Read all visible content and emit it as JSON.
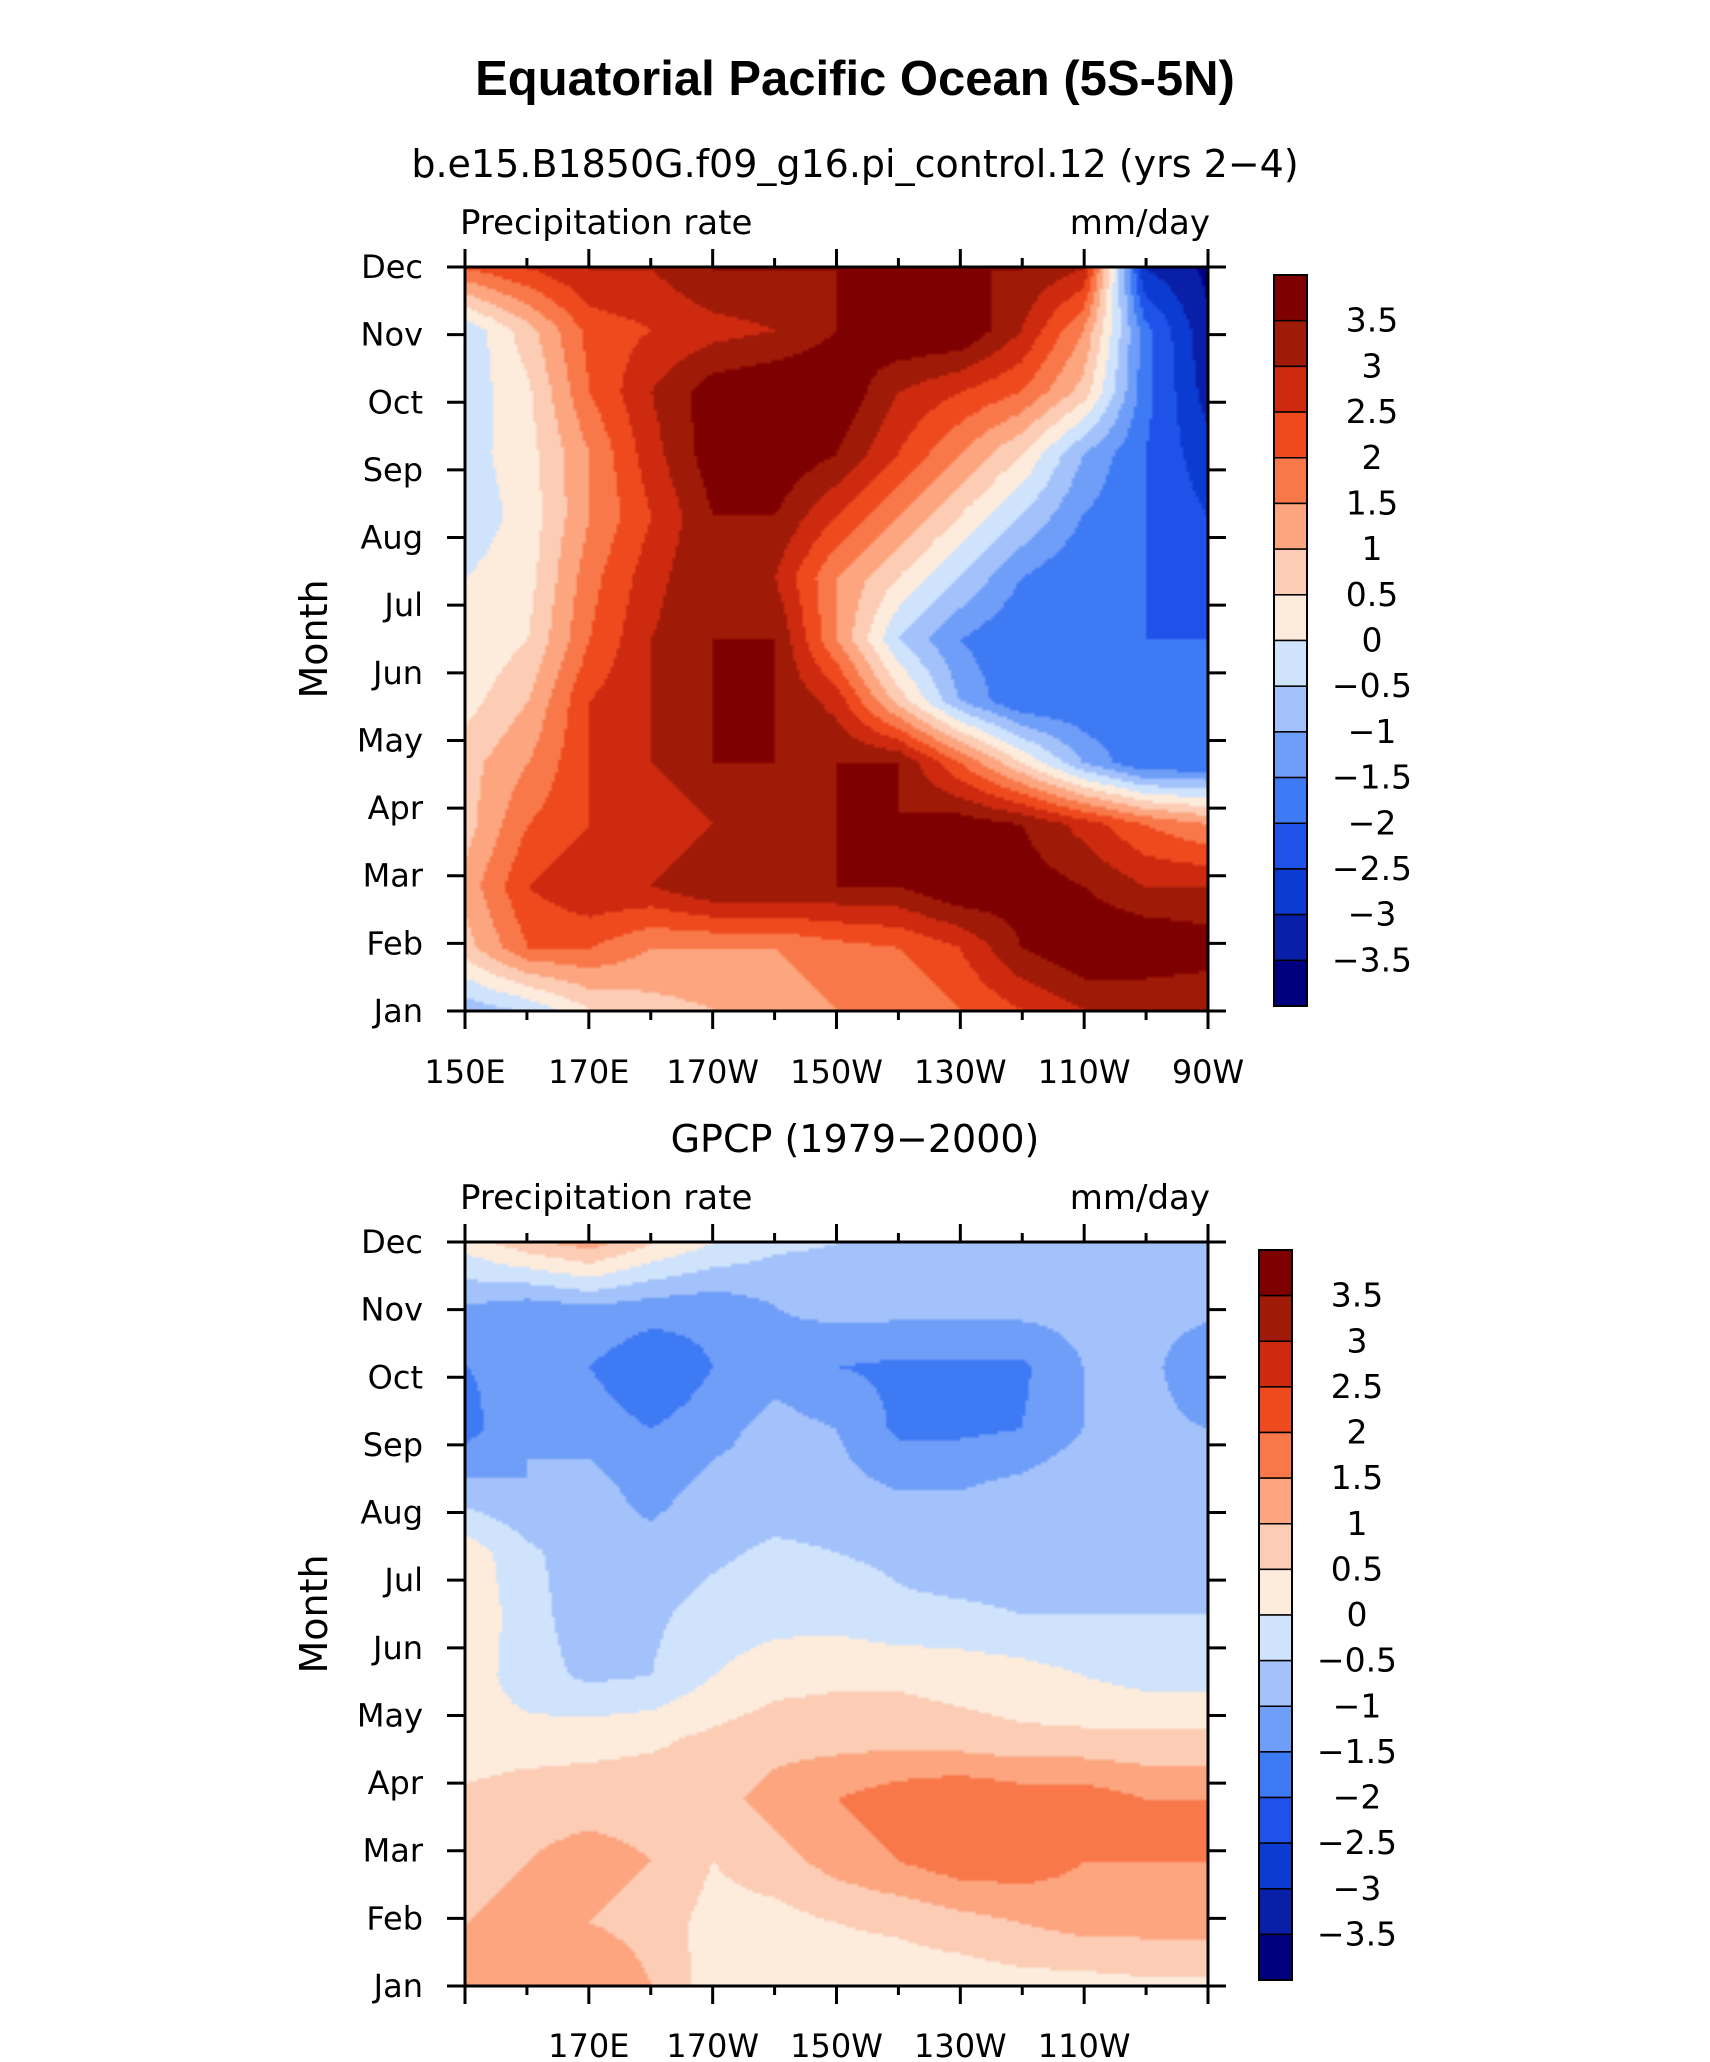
{
  "title": "Equatorial Pacific Ocean (5S-5N)",
  "levels": [
    -3.5,
    -3,
    -2.5,
    -2,
    -1.5,
    -1,
    -0.5,
    0,
    0.5,
    1,
    1.5,
    2,
    2.5,
    3,
    3.5
  ],
  "level_labels": [
    "3.5",
    "3",
    "2.5",
    "2",
    "1.5",
    "1",
    "0.5",
    "0",
    "−0.5",
    "−1",
    "−1.5",
    "−2",
    "−2.5",
    "−3",
    "−3.5"
  ],
  "palette": [
    "#00007f",
    "#0a1fa8",
    "#0b3bd0",
    "#1f52e8",
    "#3f7af5",
    "#6f9ef9",
    "#a3c2fb",
    "#cfe3fd",
    "#fdebdc",
    "#fcccb4",
    "#fca57f",
    "#f9784a",
    "#ef4a1e",
    "#cd2a10",
    "#a01a08",
    "#7f0000"
  ],
  "chart_data": [
    {
      "type": "heatmap",
      "title": "b.e15.B1850G.f09_g16.pi_control.12 (yrs 2−4)",
      "left_label": "Precipitation rate",
      "right_label": "mm/day",
      "ylabel": "Month",
      "xlabel": "",
      "x_tick_labels": [
        "150E",
        "170E",
        "170W",
        "150W",
        "130W",
        "110W",
        "90W"
      ],
      "y_tick_labels": [
        "Jan",
        "Feb",
        "Mar",
        "Apr",
        "May",
        "Jun",
        "Jul",
        "Aug",
        "Sep",
        "Oct",
        "Nov",
        "Dec"
      ],
      "x_longitude_range": [
        150,
        270
      ],
      "colorbar_range": [
        -3.5,
        3.5
      ],
      "grid": [
        [
          2.0,
          2.5,
          3.0,
          3.0,
          3.5,
          3.5,
          3.5,
          3.5,
          3.5,
          3.5,
          3.0,
          -3.0,
          -3.6
        ],
        [
          -0.4,
          0.8,
          2.2,
          2.5,
          2.8,
          3.0,
          3.5,
          4.0,
          4.0,
          3.0,
          1.5,
          -1.8,
          -3.4
        ],
        [
          -0.3,
          0.4,
          2.0,
          3.0,
          3.8,
          4.0,
          4.0,
          3.0,
          2.5,
          2.0,
          0.8,
          -1.8,
          -3.2
        ],
        [
          -0.2,
          0.3,
          1.5,
          2.8,
          3.8,
          4.0,
          3.5,
          2.5,
          1.5,
          0.5,
          -1.0,
          -2.0,
          -2.8
        ],
        [
          -0.3,
          0.2,
          1.5,
          2.5,
          3.5,
          3.5,
          2.5,
          1.5,
          0.5,
          -0.5,
          -1.5,
          -2.0,
          -2.5
        ],
        [
          0.0,
          0.3,
          1.8,
          2.8,
          3.5,
          3.0,
          1.5,
          0.5,
          -0.5,
          -1.5,
          -2.0,
          -2.0,
          -2.2
        ],
        [
          0.0,
          0.5,
          2.0,
          3.0,
          3.5,
          3.5,
          1.5,
          -0.5,
          -1.5,
          -2.0,
          -2.0,
          -2.0,
          -2.0
        ],
        [
          0.3,
          1.0,
          2.5,
          3.0,
          3.5,
          3.5,
          2.8,
          0.8,
          -1.0,
          -2.0,
          -2.0,
          -2.0,
          -2.0
        ],
        [
          0.8,
          1.5,
          2.5,
          3.0,
          3.5,
          3.5,
          3.5,
          3.5,
          2.0,
          0.5,
          -1.0,
          -2.0,
          -2.0
        ],
        [
          0.8,
          2.0,
          2.5,
          2.5,
          3.0,
          3.0,
          3.5,
          3.5,
          3.8,
          3.5,
          2.8,
          2.0,
          1.5
        ],
        [
          1.2,
          2.5,
          3.0,
          3.0,
          3.5,
          3.5,
          3.5,
          3.5,
          4.0,
          3.8,
          3.5,
          3.0,
          3.0
        ],
        [
          0.8,
          2.0,
          2.0,
          1.5,
          1.5,
          1.5,
          1.8,
          2.0,
          2.5,
          3.5,
          4.0,
          4.0,
          3.8
        ],
        [
          -0.8,
          -0.4,
          0.5,
          0.8,
          1.0,
          1.2,
          1.5,
          1.5,
          2.0,
          2.5,
          3.0,
          3.0,
          3.0
        ]
      ]
    },
    {
      "type": "heatmap",
      "title": "GPCP (1979−2000)",
      "left_label": "Precipitation rate",
      "right_label": "mm/day",
      "ylabel": "Month",
      "xlabel": "",
      "x_tick_labels": [
        "170E",
        "170W",
        "150W",
        "130W",
        "110W"
      ],
      "y_tick_labels": [
        "Jan",
        "Feb",
        "Mar",
        "Apr",
        "May",
        "Jun",
        "Jul",
        "Aug",
        "Sep",
        "Oct",
        "Nov",
        "Dec"
      ],
      "x_longitude_range": [
        150,
        270
      ],
      "colorbar_range": [
        -3.5,
        3.5
      ],
      "grid": [
        [
          0.2,
          0.8,
          1.2,
          0.5,
          0.0,
          -0.4,
          -0.5,
          -0.6,
          -0.6,
          -0.6,
          -0.6,
          -0.6,
          -0.6
        ],
        [
          -1.0,
          -1.2,
          -1.0,
          -1.2,
          -1.3,
          -1.0,
          -0.8,
          -0.8,
          -0.8,
          -0.8,
          -0.8,
          -0.8,
          -0.8
        ],
        [
          -1.5,
          -1.3,
          -1.5,
          -2.0,
          -1.5,
          -1.2,
          -1.5,
          -1.6,
          -1.6,
          -1.6,
          -1.0,
          -0.8,
          -1.5
        ],
        [
          -1.7,
          -1.0,
          -1.2,
          -1.5,
          -1.2,
          -0.8,
          -1.0,
          -1.6,
          -1.6,
          -1.5,
          -1.0,
          -0.8,
          -1.0
        ],
        [
          -0.8,
          -1.0,
          -0.8,
          -1.2,
          -0.8,
          -0.8,
          -0.8,
          -1.0,
          -1.0,
          -0.8,
          -0.6,
          -0.8,
          -1.0
        ],
        [
          0.3,
          -0.4,
          -0.8,
          -0.8,
          -0.6,
          -0.4,
          -0.5,
          -0.6,
          -0.8,
          -0.8,
          -0.8,
          -0.8,
          -0.8
        ],
        [
          0.4,
          -0.3,
          -0.8,
          -0.6,
          -0.3,
          -0.2,
          -0.2,
          -0.4,
          -0.4,
          -0.5,
          -0.5,
          -0.5,
          -0.5
        ],
        [
          0.3,
          -0.3,
          -0.6,
          -0.5,
          0.0,
          0.3,
          0.4,
          0.4,
          0.3,
          0.2,
          0.0,
          -0.2,
          -0.2
        ],
        [
          0.2,
          0.2,
          0.3,
          0.4,
          0.6,
          0.8,
          0.8,
          0.8,
          0.7,
          0.6,
          0.6,
          0.6,
          0.6
        ],
        [
          0.6,
          0.8,
          0.8,
          0.8,
          0.8,
          1.2,
          1.5,
          1.8,
          2.0,
          1.8,
          1.8,
          1.5,
          1.5
        ],
        [
          0.8,
          1.0,
          1.2,
          1.0,
          0.5,
          0.8,
          1.2,
          1.5,
          1.8,
          1.8,
          1.5,
          1.5,
          1.5
        ],
        [
          1.0,
          1.2,
          1.0,
          0.8,
          0.3,
          0.3,
          0.5,
          0.6,
          0.8,
          1.0,
          1.2,
          1.2,
          1.2
        ],
        [
          1.5,
          1.2,
          1.5,
          1.0,
          0.2,
          0.2,
          0.2,
          0.2,
          0.2,
          0.3,
          0.3,
          0.4,
          0.4
        ]
      ]
    }
  ]
}
